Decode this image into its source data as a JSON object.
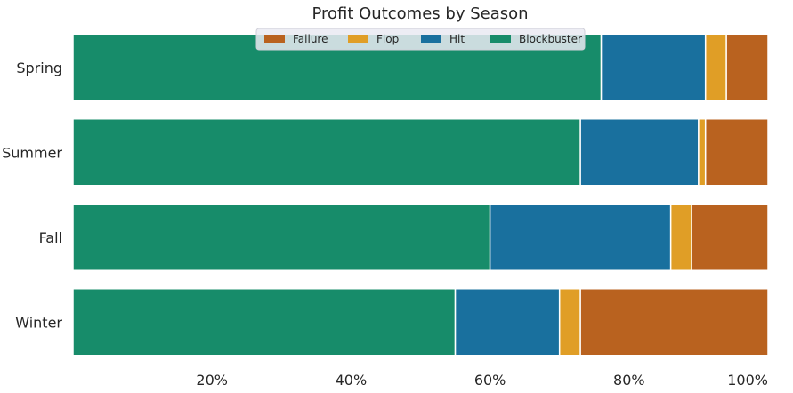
{
  "chart_data": {
    "type": "bar",
    "orientation": "horizontal",
    "stacked": true,
    "title": "Profit Outcomes by Season",
    "xlabel": "",
    "ylabel": "",
    "categories": [
      "Spring",
      "Summer",
      "Fall",
      "Winter"
    ],
    "series": [
      {
        "name": "Blockbuster",
        "color": "#178c6a",
        "values": [
          76,
          73,
          60,
          55
        ]
      },
      {
        "name": "Hit",
        "color": "#19709e",
        "values": [
          15,
          17,
          26,
          15
        ]
      },
      {
        "name": "Flop",
        "color": "#e09e26",
        "values": [
          3,
          1,
          3,
          3
        ]
      },
      {
        "name": "Failure",
        "color": "#b9621f",
        "values": [
          6,
          9,
          11,
          27
        ]
      }
    ],
    "xlim": [
      0,
      100
    ],
    "xticks": [
      20,
      40,
      60,
      80,
      100
    ],
    "xtick_labels": [
      "20%",
      "40%",
      "60%",
      "80%",
      "100%"
    ],
    "grid": false,
    "legend": {
      "placement": "top-center",
      "order": [
        "Failure",
        "Flop",
        "Hit",
        "Blockbuster"
      ]
    }
  }
}
